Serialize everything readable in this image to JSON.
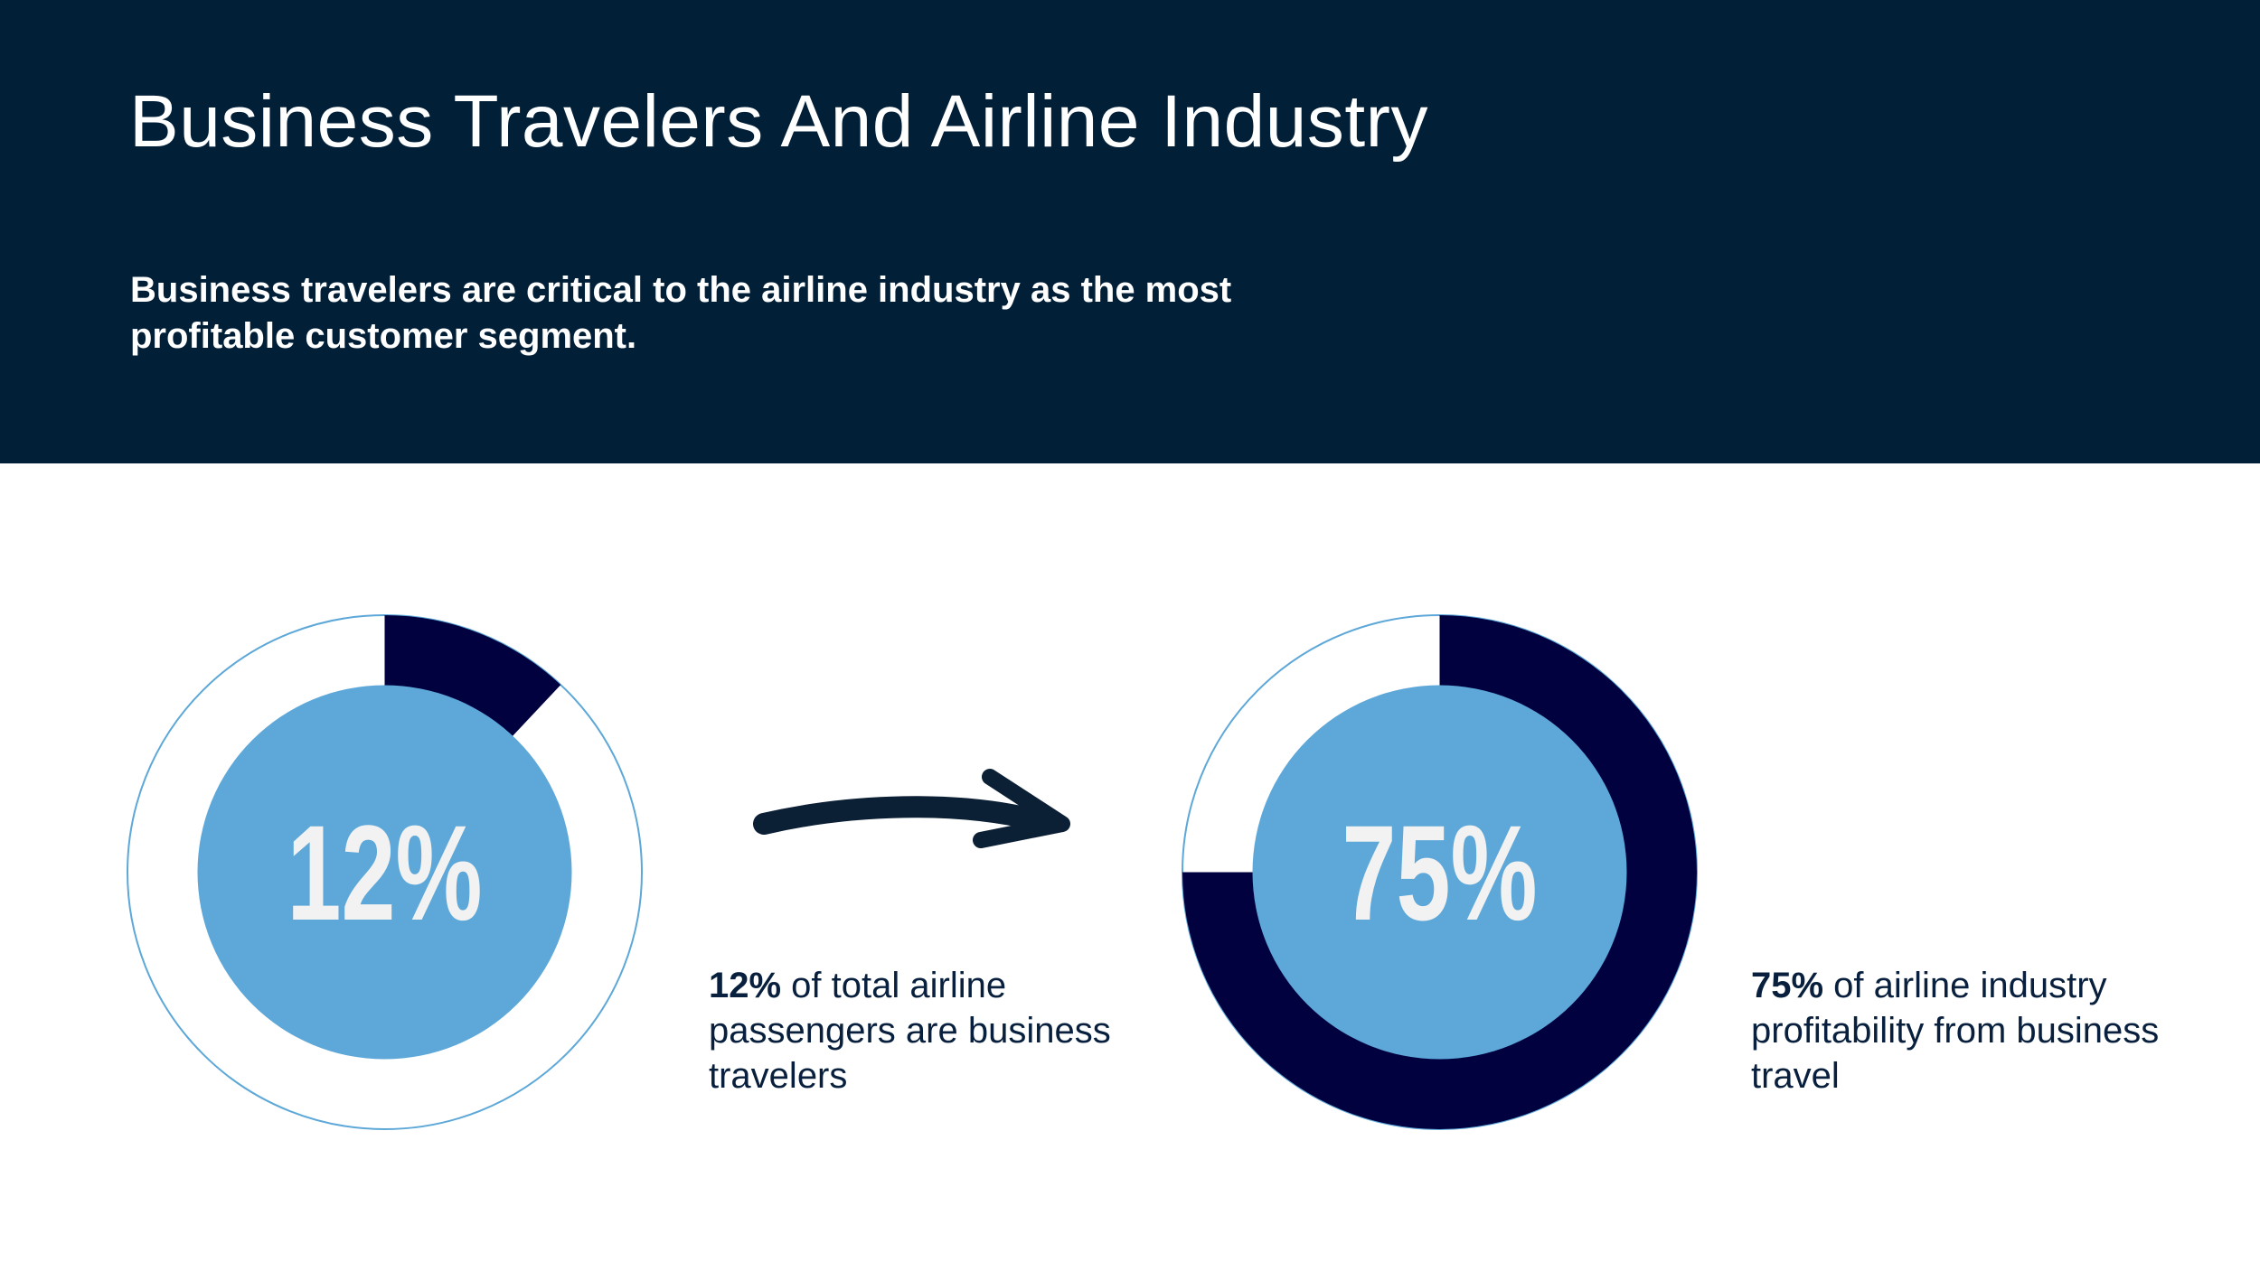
{
  "header": {
    "title": "Business Travelers And Airline Industry",
    "subtitle": "Business travelers are critical to the airline industry as the most profitable customer segment."
  },
  "colors": {
    "header_bg": "#021f38",
    "ring_fill": "#01013f",
    "inner_circle": "#5da8d8",
    "ring_outline": "#5da8d8",
    "center_text": "#f2f2f2",
    "arrow": "#0b1f35"
  },
  "chart_data": [
    {
      "type": "pie",
      "value_percent": 12,
      "center_label": "12%",
      "caption_value": "12%",
      "caption_text": " of total airline passengers are business travelers"
    },
    {
      "type": "pie",
      "value_percent": 75,
      "center_label": "75%",
      "caption_value": "75%",
      "caption_text": " of airline industry profitability from business travel"
    }
  ],
  "arrow_icon": "curved-arrow-right-icon"
}
